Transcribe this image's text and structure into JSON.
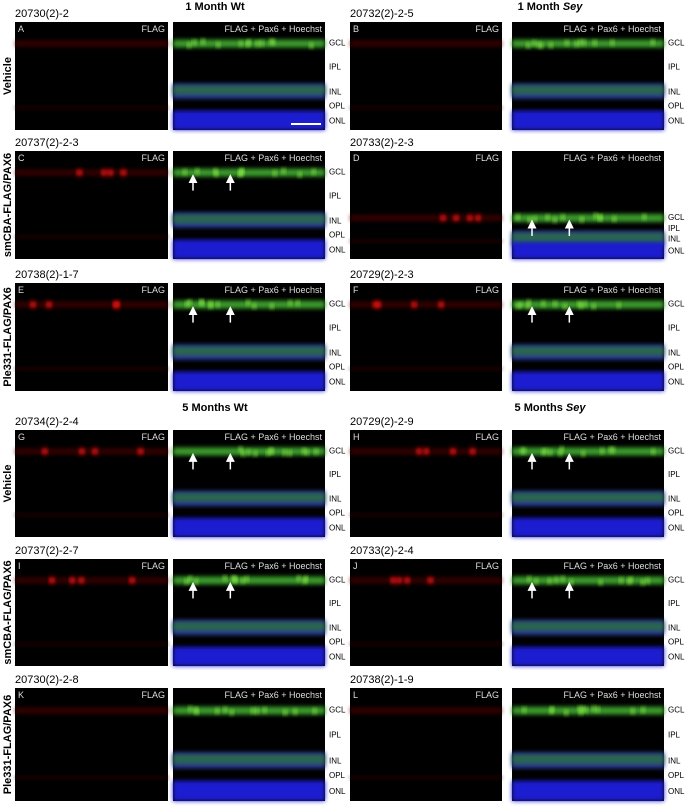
{
  "sections": [
    {
      "columns": [
        {
          "title_prefix": "1 Month",
          "title_strain": "Wt",
          "strain_italic": false
        },
        {
          "title_prefix": "1 Month",
          "title_strain": "Sey",
          "strain_italic": true
        }
      ],
      "rows": [
        {
          "label": "Vehicle",
          "panels": [
            {
              "id": "20730(2)-2",
              "letter": "A",
              "single_label": "FLAG",
              "merge_label": "FLAG + Pax6 + Hoechst",
              "layers": [
                "GCL",
                "IPL",
                "INL",
                "OPL",
                "ONL"
              ]
            },
            {
              "id": "20732(2)-2-5",
              "letter": "B",
              "single_label": "FLAG",
              "merge_label": "FLAG + Pax6 + Hoechst",
              "layers": [
                "GCL",
                "IPL",
                "INL",
                "OPL",
                "ONL"
              ]
            }
          ]
        },
        {
          "label": "smCBA-FLAG/PAX6",
          "panels": [
            {
              "id": "20737(2)-2-3",
              "letter": "C",
              "single_label": "FLAG",
              "merge_label": "FLAG + Pax6 + Hoechst",
              "layers": [
                "GCL",
                "IPL",
                "INL",
                "OPL",
                "ONL"
              ]
            },
            {
              "id": "20733(2)-2-3",
              "letter": "D",
              "single_label": "FLAG",
              "merge_label": "FLAG + Pax6 + Hoechst",
              "layers": [
                "GCL",
                "IPL",
                "INL",
                "ONL"
              ]
            }
          ]
        },
        {
          "label": "Ple331-FLAG/PAX6",
          "panels": [
            {
              "id": "20738(2)-1-7",
              "letter": "E",
              "single_label": "FLAG",
              "merge_label": "FLAG + Pax6 + Hoechst",
              "layers": [
                "GCL",
                "IPL",
                "INL",
                "OPL",
                "ONL"
              ]
            },
            {
              "id": "20729(2)-2-3",
              "letter": "F",
              "single_label": "FLAG",
              "merge_label": "FLAG + Pax6 + Hoechst",
              "layers": [
                "GCL",
                "IPL",
                "INL",
                "OPL",
                "ONL"
              ]
            }
          ]
        }
      ]
    },
    {
      "columns": [
        {
          "title_prefix": "5 Months",
          "title_strain": "Wt",
          "strain_italic": false
        },
        {
          "title_prefix": "5 Months",
          "title_strain": "Sey",
          "strain_italic": true
        }
      ],
      "rows": [
        {
          "label": "Vehicle",
          "panels": [
            {
              "id": "20734(2)-2-4",
              "letter": "G",
              "single_label": "FLAG",
              "merge_label": "FLAG + Pax6 + Hoechst",
              "layers": [
                "GCL",
                "IPL",
                "INL",
                "OPL",
                "ONL"
              ]
            },
            {
              "id": "20729(2)-2-9",
              "letter": "H",
              "single_label": "FLAG",
              "merge_label": "FLAG + Pax6 + Hoechst",
              "layers": [
                "GCL",
                "IPL",
                "INL",
                "OPL",
                "ONL"
              ]
            }
          ]
        },
        {
          "label": "smCBA-FLAG/PAX6",
          "panels": [
            {
              "id": "20737(2)-2-7",
              "letter": "I",
              "single_label": "FLAG",
              "merge_label": "FLAG + Pax6 + Hoechst",
              "layers": [
                "GCL",
                "IPL",
                "INL",
                "OPL",
                "ONL"
              ]
            },
            {
              "id": "20733(2)-2-4",
              "letter": "J",
              "single_label": "FLAG",
              "merge_label": "FLAG + Pax6 + Hoechst",
              "layers": [
                "GCL",
                "IPL",
                "INL",
                "OPL",
                "ONL"
              ]
            }
          ]
        },
        {
          "label": "Ple331-FLAG/PAX6",
          "panels": [
            {
              "id": "20730(2)-2-8",
              "letter": "K",
              "single_label": "FLAG",
              "merge_label": "FLAG + Pax6 + Hoechst",
              "layers": [
                "GCL",
                "IPL",
                "INL",
                "OPL",
                "ONL"
              ]
            },
            {
              "id": "20738(2)-1-9",
              "letter": "L",
              "single_label": "FLAG",
              "merge_label": "FLAG + Pax6 + Hoechst",
              "layers": [
                "GCL",
                "IPL",
                "INL",
                "OPL",
                "ONL"
              ]
            }
          ]
        }
      ]
    }
  ]
}
